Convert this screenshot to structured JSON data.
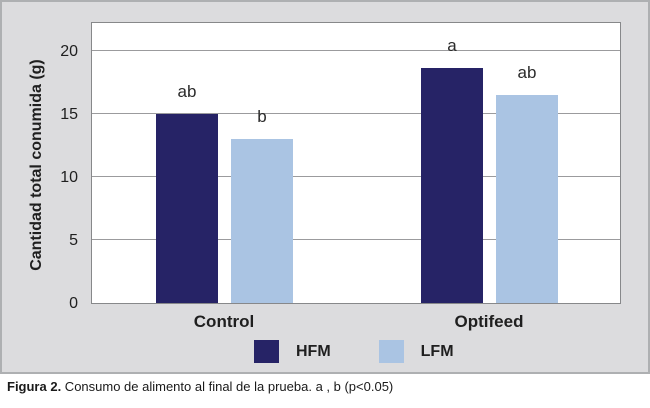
{
  "figure": {
    "caption_bold": "Figura 2.",
    "caption_rest": " Consumo de alimento al final de la prueba. a , b (p<0.05)"
  },
  "chart_data": {
    "type": "bar",
    "title": "",
    "xlabel": "",
    "ylabel": "Cantidad total conumida (g)",
    "ylim": [
      0,
      22.4
    ],
    "yticks": [
      0,
      5,
      10,
      15,
      20
    ],
    "grid": true,
    "legend_position": "bottom-center",
    "categories": [
      "Control",
      "Optifeed"
    ],
    "series": [
      {
        "name": "HFM",
        "color": "#262366",
        "values": [
          15.0,
          18.7
        ],
        "sig_labels": [
          "ab",
          "a"
        ]
      },
      {
        "name": "LFM",
        "color": "#aac4e3",
        "values": [
          13.0,
          16.5
        ],
        "sig_labels": [
          "b",
          "ab"
        ]
      }
    ],
    "colors": {
      "panel_bg": "#dcdcde",
      "panel_border": "#aeb0b2",
      "plot_bg": "#ffffff",
      "plot_border": "#87888a",
      "gridline": "#9b9b9d"
    }
  }
}
